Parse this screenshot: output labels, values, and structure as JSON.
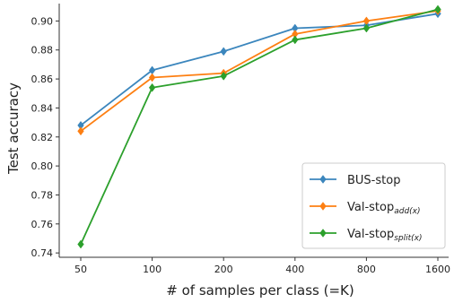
{
  "chart_data": {
    "type": "line",
    "title": "",
    "xlabel": "# of samples per class (=K)",
    "ylabel": "Test accuracy",
    "categories": [
      "50",
      "100",
      "200",
      "400",
      "800",
      "1600"
    ],
    "yticks": [
      "0.74",
      "0.76",
      "0.78",
      "0.80",
      "0.82",
      "0.84",
      "0.86",
      "0.88",
      "0.90"
    ],
    "ylim": [
      0.737,
      0.912
    ],
    "grid": false,
    "legend_position": "bottom-right",
    "series": [
      {
        "name": "BUS-stop",
        "name_base": "BUS-stop",
        "name_sub": "",
        "color": "#3b86bd",
        "marker": "diamond",
        "values": [
          0.828,
          0.866,
          0.879,
          0.895,
          0.897,
          0.905
        ]
      },
      {
        "name": "Val-stop_add(x)",
        "name_base": "Val-stop",
        "name_sub": "add(x)",
        "color": "#fd7f12",
        "marker": "diamond",
        "values": [
          0.824,
          0.861,
          0.864,
          0.891,
          0.9,
          0.907
        ]
      },
      {
        "name": "Val-stop_split(x)",
        "name_base": "Val-stop",
        "name_sub": "split(x)",
        "color": "#2ca02c",
        "marker": "diamond",
        "values": [
          0.746,
          0.854,
          0.862,
          0.887,
          0.895,
          0.908
        ]
      }
    ]
  }
}
